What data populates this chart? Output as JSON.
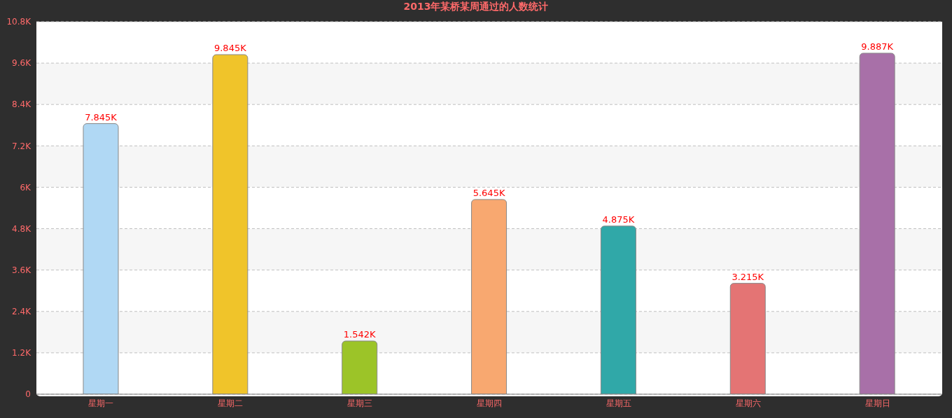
{
  "chart_data": {
    "type": "bar",
    "title": "2013年某桥某周通过的人数统计",
    "categories": [
      "星期一",
      "星期二",
      "星期三",
      "星期四",
      "星期五",
      "星期六",
      "星期日"
    ],
    "values": [
      7845,
      9845,
      1542,
      5645,
      4875,
      3215,
      9887
    ],
    "colors": [
      "#b0d8f4",
      "#f0c42a",
      "#9cc428",
      "#f8a870",
      "#30a8a8",
      "#e47474",
      "#a870a8"
    ],
    "value_labels": [
      "7.845K",
      "9.845K",
      "1.542K",
      "5.645K",
      "4.875K",
      "3.215K",
      "9.887K"
    ],
    "ylim": [
      0,
      10800
    ],
    "yticks": [
      0,
      {
        "value": 1200,
        "label": "1.2K"
      },
      {
        "value": 2400,
        "label": "2.4K"
      },
      {
        "value": 3600,
        "label": "3.6K"
      },
      {
        "value": 4800,
        "label": "4.8K"
      },
      {
        "value": 6000,
        "label": "6K"
      },
      {
        "value": 7200,
        "label": "7.2K"
      },
      {
        "value": 8400,
        "label": "8.4K"
      },
      {
        "value": 9600,
        "label": "9.6K"
      },
      {
        "value": 10800,
        "label": "10.8K"
      }
    ],
    "grid": "y",
    "legend": false
  }
}
